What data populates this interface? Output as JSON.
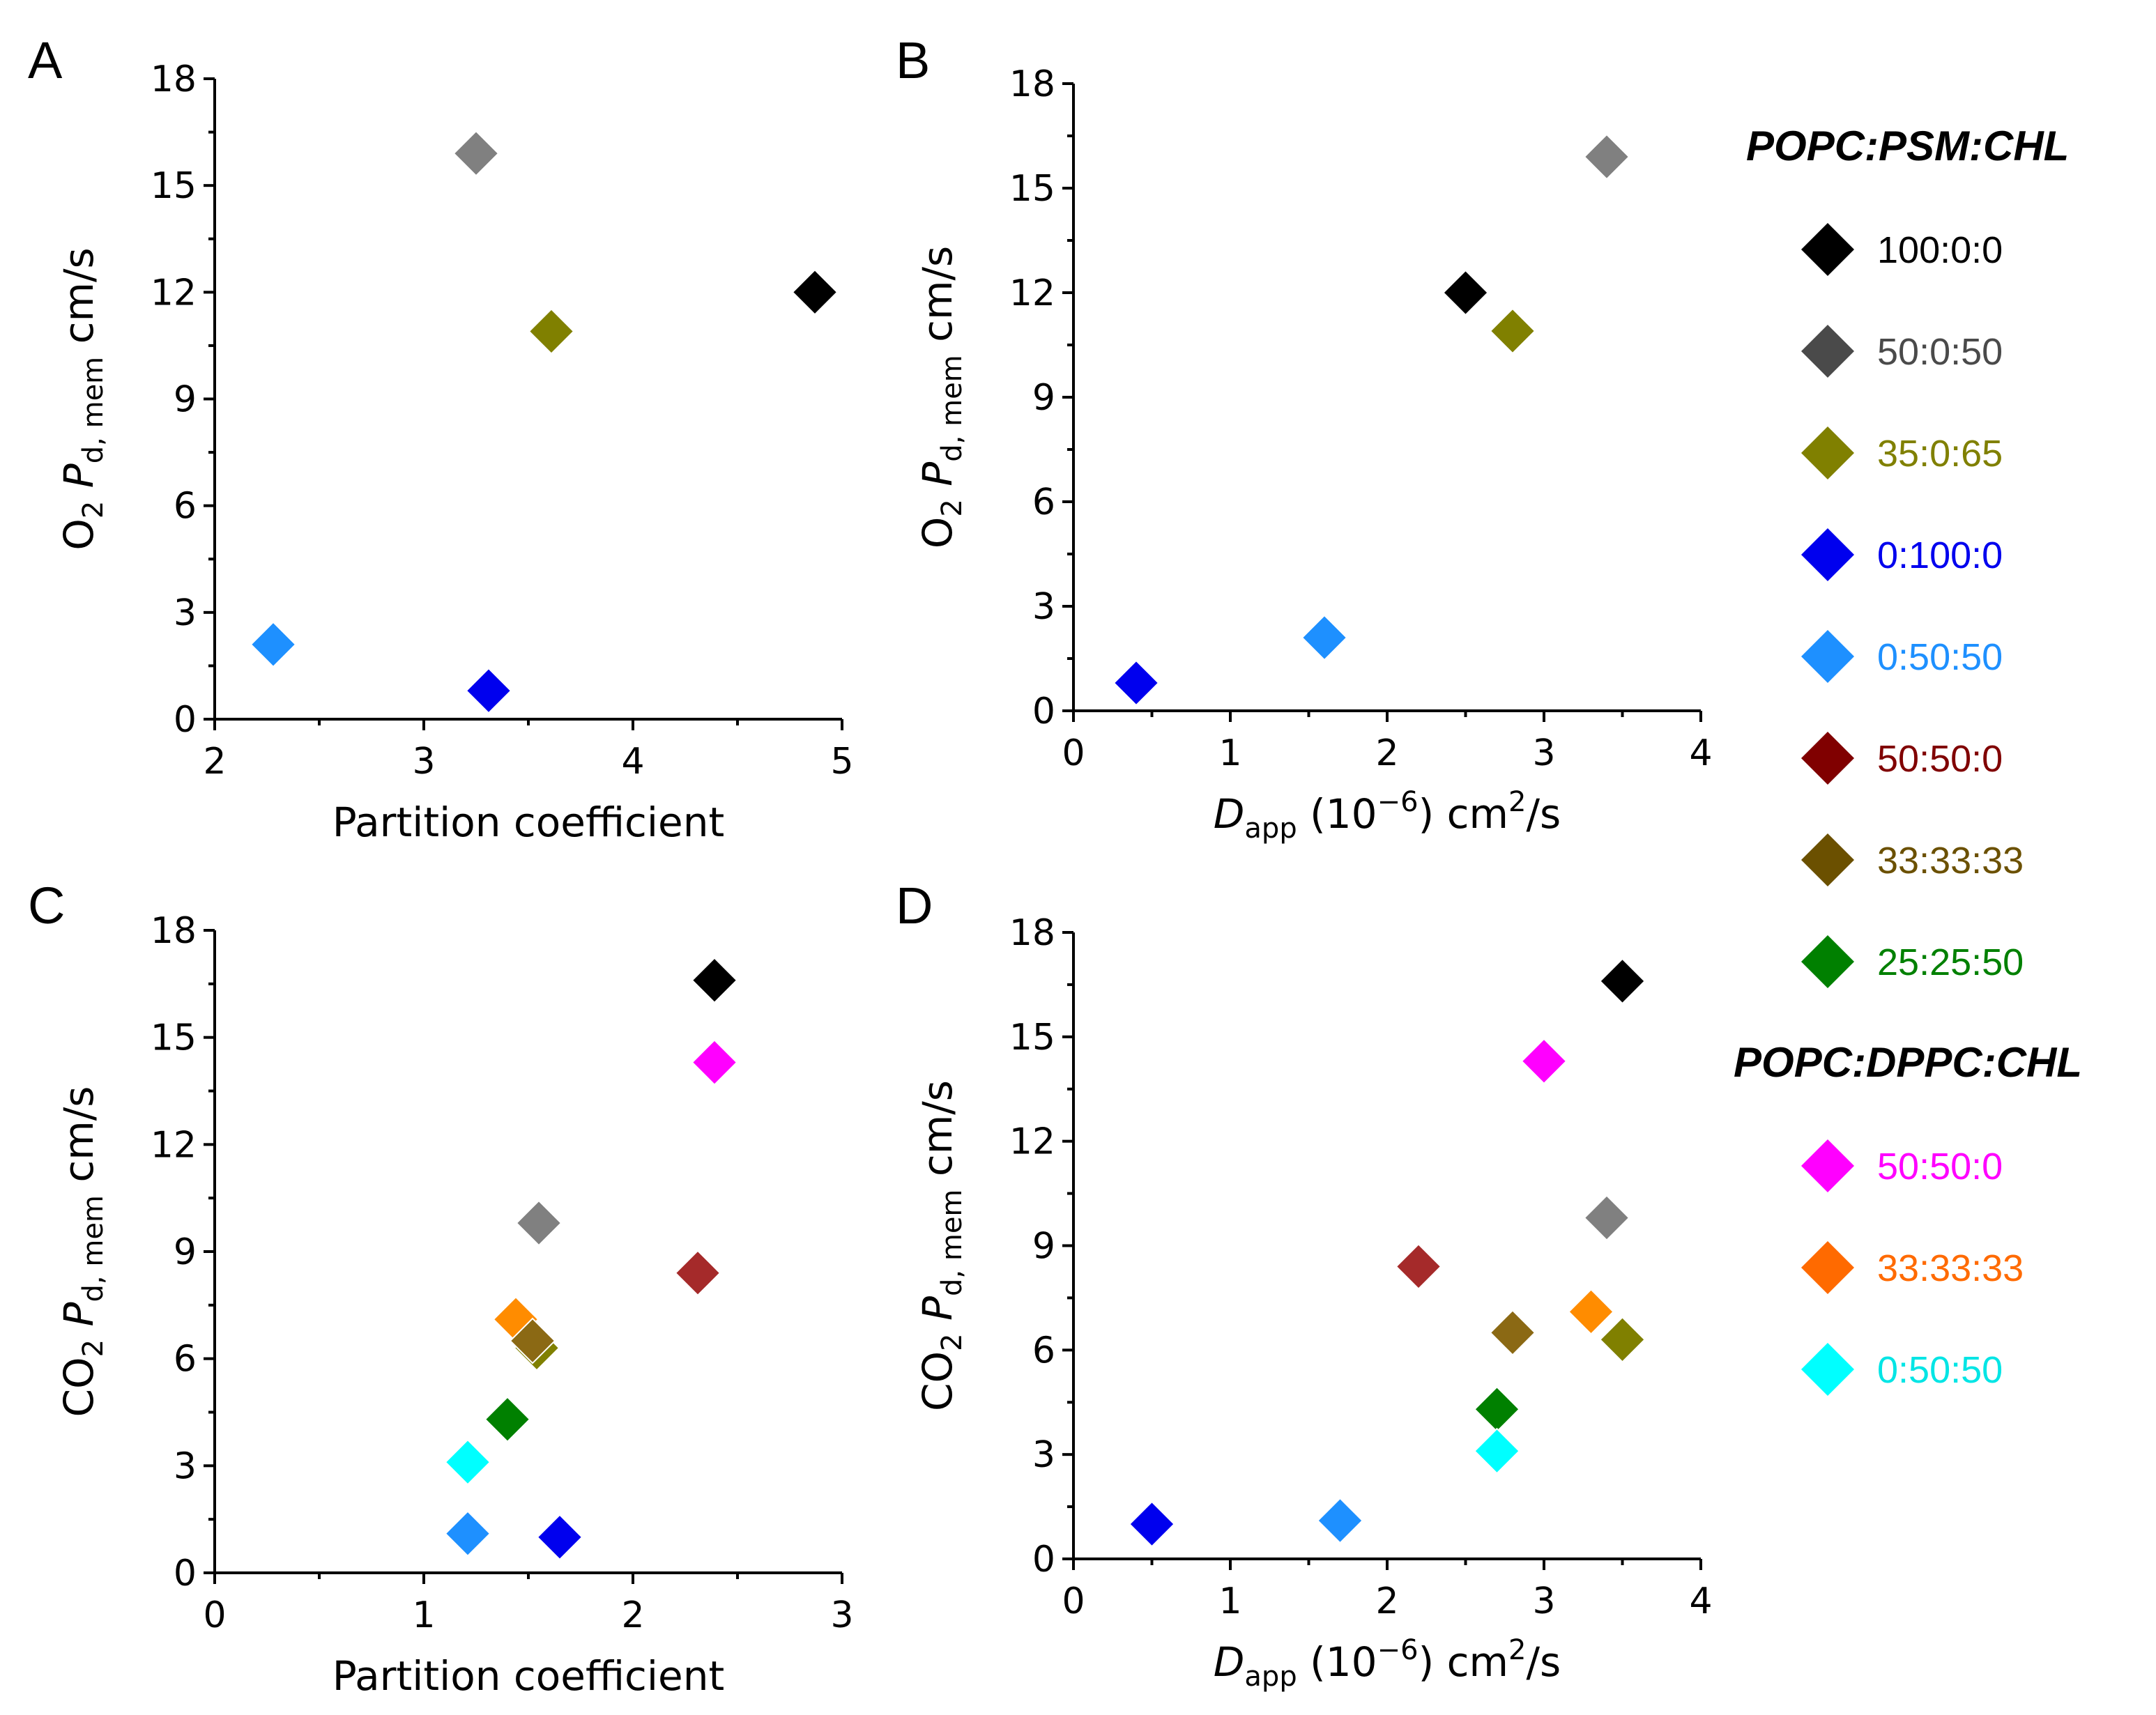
{
  "chart_data": [
    {
      "panel": "A",
      "type": "scatter",
      "xlabel": "Partition coefficient",
      "ylabel": {
        "prefix": "O",
        "prefix_sub": "2",
        "var": "P",
        "var_sub": "d, mem",
        "unit": "cm/s"
      },
      "xlim": [
        2,
        5
      ],
      "ylim": [
        0,
        18
      ],
      "xticks": [
        2,
        3,
        4,
        5
      ],
      "yticks": [
        0,
        3,
        6,
        9,
        12,
        15,
        18
      ],
      "points": [
        {
          "name": "100:0:0",
          "color": "#000000",
          "x": 4.87,
          "y": 12.0
        },
        {
          "name": "50:0:50",
          "color": "#808080",
          "x": 3.25,
          "y": 15.9
        },
        {
          "name": "35:0:65",
          "color": "#808000",
          "x": 3.61,
          "y": 10.9
        },
        {
          "name": "0:100:0",
          "color": "#0000ee",
          "x": 3.31,
          "y": 0.8
        },
        {
          "name": "0:50:50",
          "color": "#1e90ff",
          "x": 2.28,
          "y": 2.1
        }
      ]
    },
    {
      "panel": "B",
      "type": "scatter",
      "xlabel": {
        "var": "D",
        "var_sub": "app",
        "pre": "(10",
        "exp": "−6",
        "post": ") cm",
        "unit_exp": "2",
        "tail": "/s"
      },
      "ylabel": {
        "prefix": "O",
        "prefix_sub": "2",
        "var": "P",
        "var_sub": "d, mem",
        "unit": "cm/s"
      },
      "xlim": [
        0,
        4
      ],
      "ylim": [
        0,
        18
      ],
      "xticks": [
        0,
        1,
        2,
        3,
        4
      ],
      "yticks": [
        0,
        3,
        6,
        9,
        12,
        15,
        18
      ],
      "points": [
        {
          "name": "100:0:0",
          "color": "#000000",
          "x": 2.5,
          "y": 12.0
        },
        {
          "name": "50:0:50",
          "color": "#808080",
          "x": 3.4,
          "y": 15.9
        },
        {
          "name": "35:0:65",
          "color": "#808000",
          "x": 2.8,
          "y": 10.9
        },
        {
          "name": "0:100:0",
          "color": "#0000ee",
          "x": 0.4,
          "y": 0.8
        },
        {
          "name": "0:50:50",
          "color": "#1e90ff",
          "x": 1.6,
          "y": 2.1
        }
      ]
    },
    {
      "panel": "C",
      "type": "scatter",
      "xlabel": "Partition coefficient",
      "ylabel": {
        "prefix": "CO",
        "prefix_sub": "2",
        "var": "P",
        "var_sub": "d, mem",
        "unit": "cm/s"
      },
      "xlim": [
        0,
        3
      ],
      "ylim": [
        0,
        18
      ],
      "xticks": [
        0,
        1,
        2,
        3
      ],
      "yticks": [
        0,
        3,
        6,
        9,
        12,
        15,
        18
      ],
      "points": [
        {
          "name": "100:0:0",
          "color": "#000000",
          "x": 2.39,
          "y": 16.6
        },
        {
          "name": "DPPC 50:50:0",
          "color": "#ff00ff",
          "x": 2.39,
          "y": 14.3
        },
        {
          "name": "50:0:50",
          "color": "#808080",
          "x": 1.55,
          "y": 9.8
        },
        {
          "name": "50:50:0",
          "color": "#a52a2a",
          "x": 2.31,
          "y": 8.4
        },
        {
          "name": "DPPC 33:33:33",
          "color": "#ff8c00",
          "x": 1.44,
          "y": 7.1
        },
        {
          "name": "35:0:65",
          "color": "#808000",
          "x": 1.54,
          "y": 6.3
        },
        {
          "name": "33:33:33",
          "color": "#8b6914",
          "x": 1.52,
          "y": 6.5
        },
        {
          "name": "25:25:50",
          "color": "#008000",
          "x": 1.4,
          "y": 4.3
        },
        {
          "name": "DPPC 0:50:50",
          "color": "#00ffff",
          "x": 1.21,
          "y": 3.1
        },
        {
          "name": "0:50:50",
          "color": "#1e90ff",
          "x": 1.21,
          "y": 1.1
        },
        {
          "name": "0:100:0",
          "color": "#0000ee",
          "x": 1.65,
          "y": 1.0
        }
      ]
    },
    {
      "panel": "D",
      "type": "scatter",
      "xlabel": {
        "var": "D",
        "var_sub": "app",
        "pre": "(10",
        "exp": "−6",
        "post": ") cm",
        "unit_exp": "2",
        "tail": "/s"
      },
      "ylabel": {
        "prefix": "CO",
        "prefix_sub": "2",
        "var": "P",
        "var_sub": "d, mem",
        "unit": "cm/s"
      },
      "xlim": [
        0,
        4
      ],
      "ylim": [
        0,
        18
      ],
      "xticks": [
        0,
        1,
        2,
        3,
        4
      ],
      "yticks": [
        0,
        3,
        6,
        9,
        12,
        15,
        18
      ],
      "points": [
        {
          "name": "100:0:0",
          "color": "#000000",
          "x": 3.5,
          "y": 16.6
        },
        {
          "name": "DPPC 50:50:0",
          "color": "#ff00ff",
          "x": 3.0,
          "y": 14.3
        },
        {
          "name": "50:0:50",
          "color": "#808080",
          "x": 3.4,
          "y": 9.8
        },
        {
          "name": "50:50:0",
          "color": "#a52a2a",
          "x": 2.2,
          "y": 8.4
        },
        {
          "name": "DPPC 33:33:33",
          "color": "#ff8c00",
          "x": 3.3,
          "y": 7.1
        },
        {
          "name": "33:33:33",
          "color": "#8b6914",
          "x": 2.8,
          "y": 6.5
        },
        {
          "name": "35:0:65",
          "color": "#808000",
          "x": 3.5,
          "y": 6.3
        },
        {
          "name": "25:25:50",
          "color": "#008000",
          "x": 2.7,
          "y": 4.3
        },
        {
          "name": "DPPC 0:50:50",
          "color": "#00ffff",
          "x": 2.7,
          "y": 3.1
        },
        {
          "name": "0:50:50",
          "color": "#1e90ff",
          "x": 1.7,
          "y": 1.1
        },
        {
          "name": "0:100:0",
          "color": "#0000ee",
          "x": 0.5,
          "y": 1.0
        }
      ]
    }
  ],
  "legend": {
    "groups": [
      {
        "title": "POPC:PSM:CHL",
        "items": [
          {
            "label": "100:0:0",
            "marker_color": "#000000",
            "text_color": "#000000"
          },
          {
            "label": "50:0:50",
            "marker_color": "#4a4a4a",
            "text_color": "#4a4a4a"
          },
          {
            "label": "35:0:65",
            "marker_color": "#808000",
            "text_color": "#808000"
          },
          {
            "label": "0:100:0",
            "marker_color": "#0000ee",
            "text_color": "#0000ee"
          },
          {
            "label": "0:50:50",
            "marker_color": "#1e90ff",
            "text_color": "#1e90ff"
          },
          {
            "label": "50:50:0",
            "marker_color": "#800000",
            "text_color": "#800000"
          },
          {
            "label": "33:33:33",
            "marker_color": "#6b5000",
            "text_color": "#6b5000"
          },
          {
            "label": "25:25:50",
            "marker_color": "#008000",
            "text_color": "#008000"
          }
        ]
      },
      {
        "title": "POPC:DPPC:CHL",
        "items": [
          {
            "label": "50:50:0",
            "marker_color": "#ff00ff",
            "text_color": "#ff00ff"
          },
          {
            "label": "33:33:33",
            "marker_color": "#ff6a00",
            "text_color": "#ff6a00"
          },
          {
            "label": "0:50:50",
            "marker_color": "#00ffff",
            "text_color": "#00e5e5"
          }
        ]
      }
    ]
  }
}
